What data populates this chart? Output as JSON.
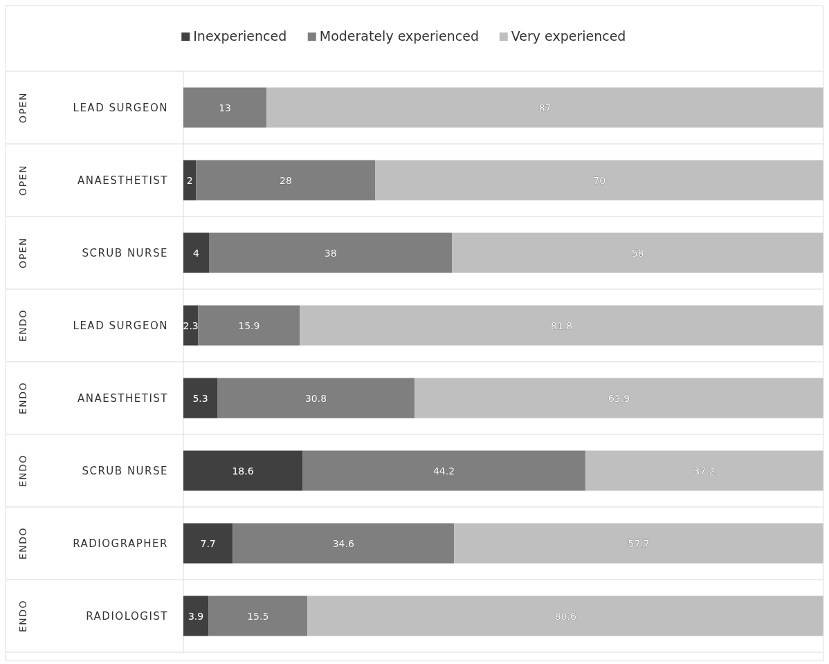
{
  "chart_data": {
    "type": "bar",
    "orientation": "horizontal",
    "stacked": true,
    "data_labels": true,
    "legend": "top",
    "grid": "y",
    "categories": [
      "LEAD SURGEON",
      "ANAESTHETIST",
      "SCRUB NURSE",
      "LEAD SURGEON",
      "ANAESTHETIST",
      "SCRUB NURSE",
      "RADIOGRAPHER",
      "RADIOLOGIST"
    ],
    "annotations": [
      "OPEN",
      "OPEN",
      "OPEN",
      "ENDO",
      "ENDO",
      "ENDO",
      "ENDO",
      "ENDO"
    ],
    "series": [
      {
        "name": "Inexperienced",
        "color": "#404040",
        "values": [
          null,
          2,
          4,
          2.3,
          5.3,
          18.6,
          7.7,
          3.9
        ]
      },
      {
        "name": "Moderately experienced",
        "color": "#7f7f7f",
        "values": [
          13,
          28,
          38,
          15.9,
          30.8,
          44.2,
          34.6,
          15.5
        ]
      },
      {
        "name": "Very experienced",
        "color": "#bfbfbf",
        "values": [
          87,
          70,
          58,
          81.8,
          63.9,
          37.2,
          57.7,
          80.6
        ]
      }
    ]
  }
}
